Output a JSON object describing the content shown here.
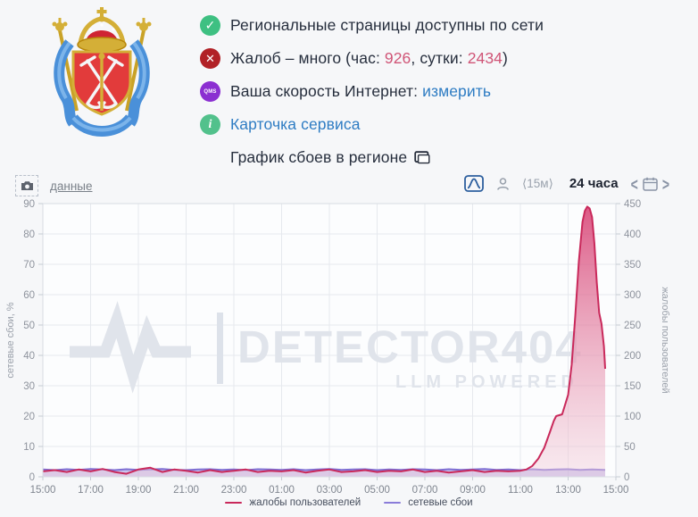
{
  "header": {
    "row1": {
      "text": "Региональные страницы доступны по сети"
    },
    "row2": {
      "pre": "Жалоб – много (час: ",
      "hour": "926",
      "mid": ", сутки: ",
      "day": "2434",
      "post": ")"
    },
    "row3": {
      "pre": "Ваша скорость Интернет: ",
      "link": "измерить"
    },
    "row4": {
      "link": "Карточка сервиса"
    },
    "row5": {
      "text": "График сбоев в регионе"
    },
    "badges": {
      "check": "✓",
      "cross": "✕",
      "qms": "QMS",
      "info": "i"
    }
  },
  "toolbar": {
    "data_link": "данные",
    "interval": "⟨15м⟩",
    "range": "24 часа",
    "chev_left": "<",
    "chev_right": ">"
  },
  "colors": {
    "accent_red": "#c9295b",
    "accent_purple": "#8374d6",
    "link_blue": "#2e7cc3",
    "num_pink": "#d05577",
    "ok_green": "#3ec082",
    "err_red": "#b12126",
    "qms_purple": "#8b2fd1"
  },
  "chart_data": {
    "type": "area",
    "title": "График сбоев в регионе",
    "x_ticks": [
      "15:00",
      "17:00",
      "19:00",
      "21:00",
      "23:00",
      "01:00",
      "03:00",
      "05:00",
      "07:00",
      "09:00",
      "11:00",
      "13:00",
      "15:00"
    ],
    "x_range_hours": 24,
    "left_axis": {
      "label": "сетевые сбои, %",
      "min": 0,
      "max": 90,
      "step": 10
    },
    "right_axis": {
      "label": "жалобы пользователей",
      "min": 0,
      "max": 450,
      "step": 50
    },
    "grid": true,
    "watermark": {
      "brand": "DETECTOR404",
      "tagline": "LLM POWERED"
    },
    "series": [
      {
        "name": "сетевые сбои",
        "axis": "left",
        "color": "#7e6fd3",
        "fill": "rgba(131,116,214,0.42)",
        "points": [
          [
            0,
            2.4
          ],
          [
            0.5,
            2.2
          ],
          [
            1,
            2.5
          ],
          [
            1.5,
            2.3
          ],
          [
            2,
            2.6
          ],
          [
            2.5,
            2.4
          ],
          [
            3,
            2.2
          ],
          [
            3.5,
            2.5
          ],
          [
            4,
            2.3
          ],
          [
            4.5,
            2.4
          ],
          [
            5,
            2.6
          ],
          [
            5.5,
            2.3
          ],
          [
            6,
            2.2
          ],
          [
            6.5,
            2.4
          ],
          [
            7,
            2.5
          ],
          [
            7.5,
            2.3
          ],
          [
            8,
            2.4
          ],
          [
            8.5,
            2.2
          ],
          [
            9,
            2.5
          ],
          [
            9.5,
            2.4
          ],
          [
            10,
            2.3
          ],
          [
            10.5,
            2.5
          ],
          [
            11,
            2.2
          ],
          [
            11.5,
            2.4
          ],
          [
            12,
            2.6
          ],
          [
            12.5,
            2.3
          ],
          [
            13,
            2.4
          ],
          [
            13.5,
            2.5
          ],
          [
            14,
            2.2
          ],
          [
            14.5,
            2.4
          ],
          [
            15,
            2.3
          ],
          [
            15.5,
            2.5
          ],
          [
            16,
            2.4
          ],
          [
            16.5,
            2.2
          ],
          [
            17,
            2.5
          ],
          [
            17.5,
            2.3
          ],
          [
            18,
            2.4
          ],
          [
            18.5,
            2.6
          ],
          [
            19,
            2.3
          ],
          [
            19.5,
            2.4
          ],
          [
            20,
            2.2
          ],
          [
            20.5,
            2.5
          ],
          [
            21,
            2.3
          ],
          [
            21.5,
            2.4
          ],
          [
            22,
            2.5
          ],
          [
            22.5,
            2.3
          ],
          [
            23,
            2.4
          ],
          [
            23.55,
            2.3
          ]
        ]
      },
      {
        "name": "жалобы пользователей",
        "axis": "right",
        "color": "#c9295b",
        "fill": "gradient-pink",
        "points": [
          [
            0,
            9
          ],
          [
            0.5,
            11
          ],
          [
            1,
            8
          ],
          [
            1.5,
            12
          ],
          [
            2,
            9
          ],
          [
            2.5,
            13
          ],
          [
            3,
            8
          ],
          [
            3.5,
            5
          ],
          [
            4,
            12
          ],
          [
            4.5,
            15
          ],
          [
            5,
            8
          ],
          [
            5.5,
            12
          ],
          [
            6,
            10
          ],
          [
            6.5,
            7
          ],
          [
            7,
            11
          ],
          [
            7.5,
            8
          ],
          [
            8,
            10
          ],
          [
            8.5,
            12
          ],
          [
            9,
            8
          ],
          [
            9.5,
            10
          ],
          [
            10,
            9
          ],
          [
            10.5,
            11
          ],
          [
            11,
            7
          ],
          [
            11.5,
            10
          ],
          [
            12,
            12
          ],
          [
            12.5,
            8
          ],
          [
            13,
            9
          ],
          [
            13.5,
            11
          ],
          [
            14,
            8
          ],
          [
            14.5,
            10
          ],
          [
            15,
            9
          ],
          [
            15.5,
            12
          ],
          [
            16,
            8
          ],
          [
            16.5,
            10
          ],
          [
            17,
            7
          ],
          [
            17.5,
            9
          ],
          [
            18,
            11
          ],
          [
            18.5,
            8
          ],
          [
            19,
            10
          ],
          [
            19.5,
            9
          ],
          [
            20,
            10
          ],
          [
            20.25,
            12
          ],
          [
            20.5,
            18
          ],
          [
            20.75,
            30
          ],
          [
            21,
            48
          ],
          [
            21.25,
            75
          ],
          [
            21.4,
            92
          ],
          [
            21.5,
            100
          ],
          [
            21.75,
            103
          ],
          [
            22,
            135
          ],
          [
            22.15,
            185
          ],
          [
            22.3,
            265
          ],
          [
            22.45,
            355
          ],
          [
            22.6,
            420
          ],
          [
            22.7,
            438
          ],
          [
            22.8,
            445
          ],
          [
            22.9,
            442
          ],
          [
            23,
            428
          ],
          [
            23.1,
            385
          ],
          [
            23.2,
            320
          ],
          [
            23.3,
            270
          ],
          [
            23.4,
            252
          ],
          [
            23.5,
            215
          ],
          [
            23.55,
            178
          ]
        ]
      }
    ],
    "legend": [
      {
        "label": "жалобы пользователей",
        "color": "#c9295b"
      },
      {
        "label": "сетевые сбои",
        "color": "#8a7cd9"
      }
    ]
  }
}
